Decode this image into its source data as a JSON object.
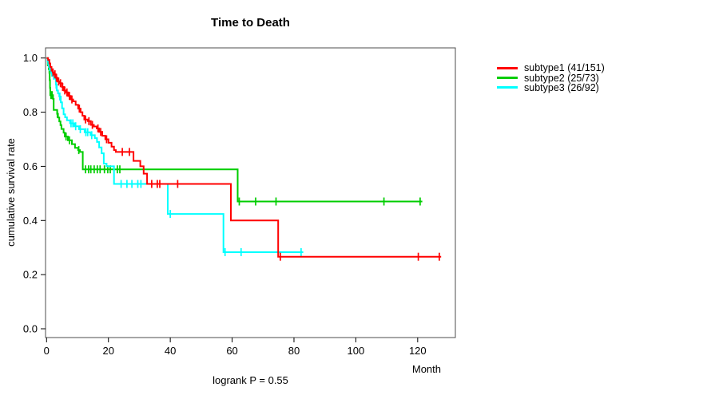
{
  "chart_data": {
    "type": "line",
    "subtype": "kaplan-meier-step",
    "title": "Time to Death",
    "xlabel": "Month",
    "ylabel": "cumulative survival rate",
    "annotation": "logrank P = 0.55",
    "xlim": [
      0,
      132
    ],
    "ylim": [
      0,
      1.0
    ],
    "x_ticks": [
      0,
      20,
      40,
      60,
      80,
      100,
      120
    ],
    "y_ticks": [
      0.0,
      0.2,
      0.4,
      0.6,
      0.8,
      1.0
    ],
    "grid": false,
    "legend_position": "right-outside",
    "box_color": "#4d4d4d",
    "draw_order": [
      1,
      2,
      0
    ],
    "series": [
      {
        "name": "subtype1 (41/151)",
        "color": "#ff0000",
        "start": [
          0,
          1.0
        ],
        "end": 127.6,
        "steps": [
          [
            0.5,
            0.993
          ],
          [
            0.9,
            0.98
          ],
          [
            1.2,
            0.967
          ],
          [
            1.6,
            0.953
          ],
          [
            2.0,
            0.947
          ],
          [
            2.5,
            0.94
          ],
          [
            3.0,
            0.927
          ],
          [
            3.6,
            0.913
          ],
          [
            4.2,
            0.907
          ],
          [
            5.0,
            0.893
          ],
          [
            5.6,
            0.88
          ],
          [
            6.3,
            0.873
          ],
          [
            7.0,
            0.86
          ],
          [
            7.8,
            0.847
          ],
          [
            8.6,
            0.84
          ],
          [
            9.4,
            0.827
          ],
          [
            10.2,
            0.813
          ],
          [
            11.0,
            0.8
          ],
          [
            11.6,
            0.787
          ],
          [
            12.2,
            0.773
          ],
          [
            13.3,
            0.767
          ],
          [
            14.3,
            0.753
          ],
          [
            15.3,
            0.747
          ],
          [
            16.2,
            0.74
          ],
          [
            17.0,
            0.727
          ],
          [
            18.0,
            0.713
          ],
          [
            19.0,
            0.7
          ],
          [
            20.0,
            0.687
          ],
          [
            21.0,
            0.673
          ],
          [
            21.8,
            0.66
          ],
          [
            22.4,
            0.653
          ],
          [
            28.1,
            0.62
          ],
          [
            30.3,
            0.6
          ],
          [
            31.4,
            0.573
          ],
          [
            32.5,
            0.535
          ],
          [
            59.6,
            0.4
          ],
          [
            74.9,
            0.266
          ]
        ],
        "censors": [
          [
            2.1,
            0.947
          ],
          [
            2.7,
            0.94
          ],
          [
            3.2,
            0.927
          ],
          [
            3.9,
            0.913
          ],
          [
            4.5,
            0.907
          ],
          [
            5.2,
            0.893
          ],
          [
            5.9,
            0.88
          ],
          [
            6.6,
            0.873
          ],
          [
            7.4,
            0.86
          ],
          [
            8.2,
            0.847
          ],
          [
            10.6,
            0.813
          ],
          [
            12.6,
            0.773
          ],
          [
            13.7,
            0.767
          ],
          [
            14.8,
            0.753
          ],
          [
            16.6,
            0.74
          ],
          [
            17.5,
            0.727
          ],
          [
            19.4,
            0.7
          ],
          [
            24.5,
            0.653
          ],
          [
            26.8,
            0.653
          ],
          [
            34.0,
            0.535
          ],
          [
            35.8,
            0.535
          ],
          [
            36.6,
            0.535
          ],
          [
            42.4,
            0.535
          ],
          [
            75.6,
            0.266
          ],
          [
            120.2,
            0.266
          ],
          [
            127.0,
            0.266
          ]
        ]
      },
      {
        "name": "subtype2 (25/73)",
        "color": "#00cd00",
        "start": [
          0,
          1.0
        ],
        "end": 121.5,
        "steps": [
          [
            0.4,
            0.973
          ],
          [
            0.7,
            0.959
          ],
          [
            0.9,
            0.945
          ],
          [
            1.0,
            0.918
          ],
          [
            1.1,
            0.89
          ],
          [
            1.2,
            0.863
          ],
          [
            2.1,
            0.849
          ],
          [
            2.3,
            0.808
          ],
          [
            3.4,
            0.794
          ],
          [
            3.7,
            0.78
          ],
          [
            4.1,
            0.766
          ],
          [
            4.5,
            0.752
          ],
          [
            4.8,
            0.738
          ],
          [
            5.5,
            0.724
          ],
          [
            5.9,
            0.71
          ],
          [
            6.9,
            0.696
          ],
          [
            8.2,
            0.682
          ],
          [
            9.2,
            0.668
          ],
          [
            10.2,
            0.66
          ],
          [
            10.8,
            0.653
          ],
          [
            11.7,
            0.589
          ],
          [
            61.8,
            0.47
          ]
        ],
        "censors": [
          [
            1.4,
            0.863
          ],
          [
            1.8,
            0.863
          ],
          [
            3.5,
            0.794
          ],
          [
            6.3,
            0.71
          ],
          [
            7.4,
            0.696
          ],
          [
            10.4,
            0.66
          ],
          [
            12.6,
            0.589
          ],
          [
            13.6,
            0.589
          ],
          [
            14.3,
            0.589
          ],
          [
            15.4,
            0.589
          ],
          [
            16.4,
            0.589
          ],
          [
            17.3,
            0.589
          ],
          [
            18.7,
            0.589
          ],
          [
            19.8,
            0.589
          ],
          [
            20.6,
            0.589
          ],
          [
            22.9,
            0.589
          ],
          [
            23.7,
            0.589
          ],
          [
            62.3,
            0.47
          ],
          [
            67.6,
            0.47
          ],
          [
            74.2,
            0.47
          ],
          [
            109.1,
            0.47
          ],
          [
            120.8,
            0.47
          ]
        ]
      },
      {
        "name": "subtype3 (26/92)",
        "color": "#00ffff",
        "start": [
          0,
          1.0
        ],
        "end": 83.0,
        "steps": [
          [
            0.3,
            0.989
          ],
          [
            0.5,
            0.978
          ],
          [
            0.8,
            0.967
          ],
          [
            1.1,
            0.957
          ],
          [
            1.5,
            0.946
          ],
          [
            2.1,
            0.935
          ],
          [
            2.8,
            0.924
          ],
          [
            3.0,
            0.902
          ],
          [
            3.3,
            0.88
          ],
          [
            3.7,
            0.869
          ],
          [
            4.1,
            0.858
          ],
          [
            4.6,
            0.836
          ],
          [
            5.0,
            0.814
          ],
          [
            5.5,
            0.792
          ],
          [
            6.0,
            0.781
          ],
          [
            6.6,
            0.77
          ],
          [
            7.6,
            0.759
          ],
          [
            9.0,
            0.748
          ],
          [
            10.5,
            0.737
          ],
          [
            12.3,
            0.726
          ],
          [
            14.2,
            0.715
          ],
          [
            15.6,
            0.704
          ],
          [
            16.3,
            0.69
          ],
          [
            17.0,
            0.67
          ],
          [
            17.8,
            0.648
          ],
          [
            18.5,
            0.61
          ],
          [
            19.4,
            0.6
          ],
          [
            21.8,
            0.535
          ],
          [
            39.2,
            0.424
          ],
          [
            57.2,
            0.283
          ]
        ],
        "censors": [
          [
            0.7,
            0.978
          ],
          [
            1.0,
            0.967
          ],
          [
            1.3,
            0.957
          ],
          [
            1.7,
            0.946
          ],
          [
            2.3,
            0.935
          ],
          [
            3.1,
            0.902
          ],
          [
            4.3,
            0.858
          ],
          [
            7.9,
            0.759
          ],
          [
            8.5,
            0.759
          ],
          [
            9.4,
            0.748
          ],
          [
            10.9,
            0.737
          ],
          [
            12.7,
            0.726
          ],
          [
            13.3,
            0.726
          ],
          [
            14.6,
            0.715
          ],
          [
            24.1,
            0.535
          ],
          [
            26.0,
            0.535
          ],
          [
            27.6,
            0.535
          ],
          [
            29.5,
            0.535
          ],
          [
            30.5,
            0.535
          ],
          [
            40.0,
            0.424
          ],
          [
            57.7,
            0.283
          ],
          [
            62.9,
            0.283
          ],
          [
            82.3,
            0.283
          ]
        ]
      }
    ]
  }
}
